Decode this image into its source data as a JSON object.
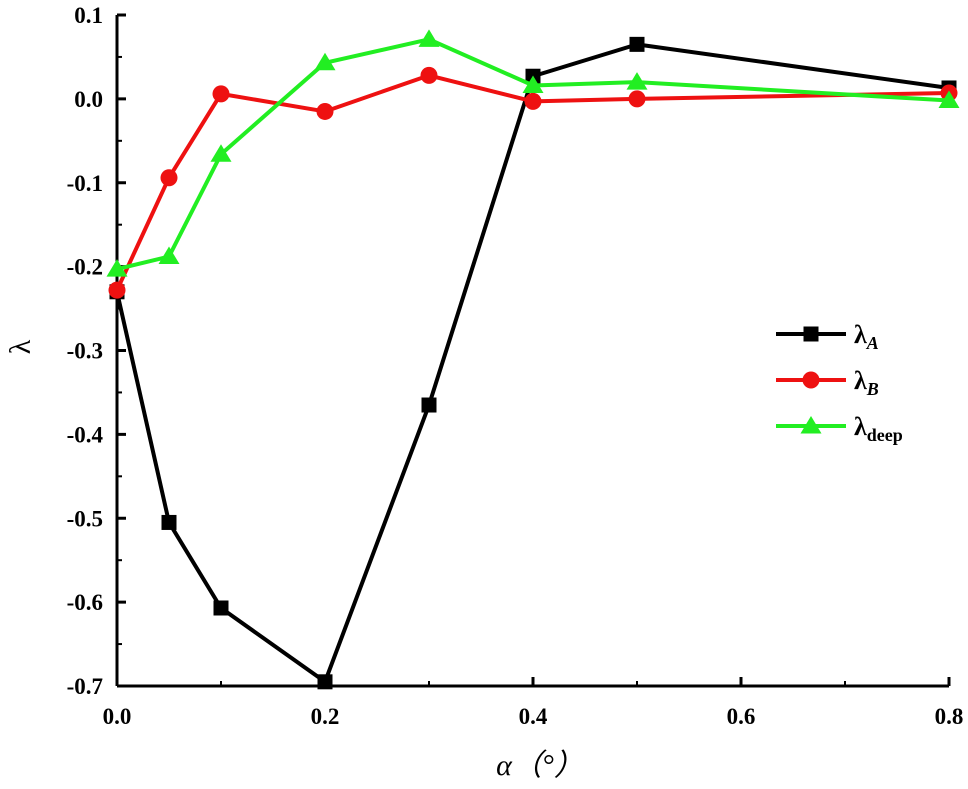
{
  "chart_data": {
    "type": "line",
    "xlabel": "α（°）",
    "ylabel": "λ",
    "xlim": [
      0.0,
      0.8
    ],
    "ylim": [
      -0.7,
      0.1
    ],
    "x_ticks": [
      "0.0",
      "0.2",
      "0.4",
      "0.6",
      "0.8"
    ],
    "y_ticks": [
      "0.1",
      "0.0",
      "-0.1",
      "-0.2",
      "-0.3",
      "-0.4",
      "-0.5",
      "-0.6",
      "-0.7"
    ],
    "grid": false,
    "legend_position": "right",
    "series": [
      {
        "name": "λA",
        "label_base": "λ",
        "label_sub": "A",
        "color": "#000000",
        "marker": "square",
        "x": [
          0.0,
          0.05,
          0.1,
          0.2,
          0.3,
          0.4,
          0.5,
          0.8
        ],
        "y": [
          -0.23,
          -0.505,
          -0.607,
          -0.695,
          -0.365,
          0.027,
          0.065,
          0.013
        ]
      },
      {
        "name": "λB",
        "label_base": "λ",
        "label_sub": "B",
        "color": "#ee1111",
        "marker": "circle",
        "x": [
          0.0,
          0.05,
          0.1,
          0.2,
          0.3,
          0.4,
          0.5,
          0.8
        ],
        "y": [
          -0.228,
          -0.094,
          0.006,
          -0.015,
          0.028,
          -0.003,
          0.0,
          0.007
        ]
      },
      {
        "name": "λdeep",
        "label_base": "λ",
        "label_sub": "deep",
        "color": "#22ee22",
        "marker": "triangle",
        "x": [
          0.0,
          0.05,
          0.1,
          0.2,
          0.3,
          0.4,
          0.5,
          0.8
        ],
        "y": [
          -0.203,
          -0.188,
          -0.066,
          0.043,
          0.071,
          0.016,
          0.02,
          -0.002
        ]
      }
    ]
  }
}
